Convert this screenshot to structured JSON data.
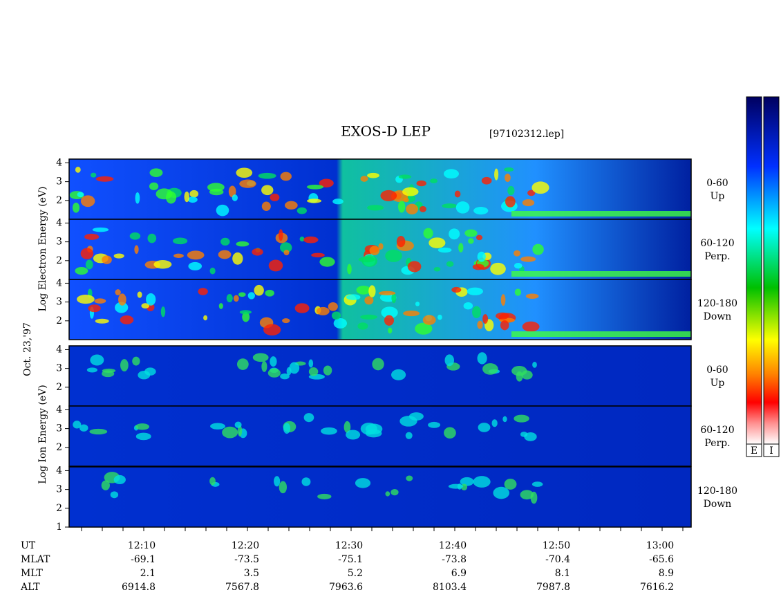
{
  "title": "EXOS-D LEP",
  "file": "[97102312.lep]",
  "date": "Oct. 23,'97",
  "electron_axis_label": "Log Electron Energy (eV)",
  "ion_axis_label": "Log Ion Energy (eV)",
  "panels": [
    {
      "angle": "0-60",
      "direction": "Up",
      "ylim": [
        1,
        4.2
      ],
      "yticks": [
        2,
        3,
        4
      ]
    },
    {
      "angle": "60-120",
      "direction": "Perp.",
      "ylim": [
        1,
        4.2
      ],
      "yticks": [
        2,
        3,
        4
      ]
    },
    {
      "angle": "120-180",
      "direction": "Down",
      "ylim": [
        1,
        4.2
      ],
      "yticks": [
        2,
        3,
        4
      ]
    },
    {
      "angle": "0-60",
      "direction": "Up",
      "ylim": [
        1,
        4.2
      ],
      "yticks": [
        2,
        3,
        4
      ]
    },
    {
      "angle": "60-120",
      "direction": "Perp.",
      "ylim": [
        1,
        4.2
      ],
      "yticks": [
        2,
        3,
        4
      ]
    },
    {
      "angle": "120-180",
      "direction": "Down",
      "ylim": [
        1,
        4.2
      ],
      "yticks": [
        1,
        2,
        3,
        4
      ]
    }
  ],
  "colorbar_labels": [
    "E",
    "I"
  ],
  "ephemeris": {
    "row_names": [
      "UT",
      "MLAT",
      "MLT",
      "ALT"
    ],
    "UT": [
      "12:10",
      "12:20",
      "12:30",
      "12:40",
      "12:50",
      "13:00"
    ],
    "MLAT": [
      "-69.1",
      "-73.5",
      "-75.1",
      "-73.8",
      "-70.4",
      "-65.6"
    ],
    "MLT": [
      "2.1",
      "3.5",
      "5.2",
      "6.9",
      "8.1",
      "8.9"
    ],
    "ALT": [
      "6914.8",
      "7567.8",
      "7963.6",
      "8103.4",
      "7987.8",
      "7616.2"
    ]
  }
}
